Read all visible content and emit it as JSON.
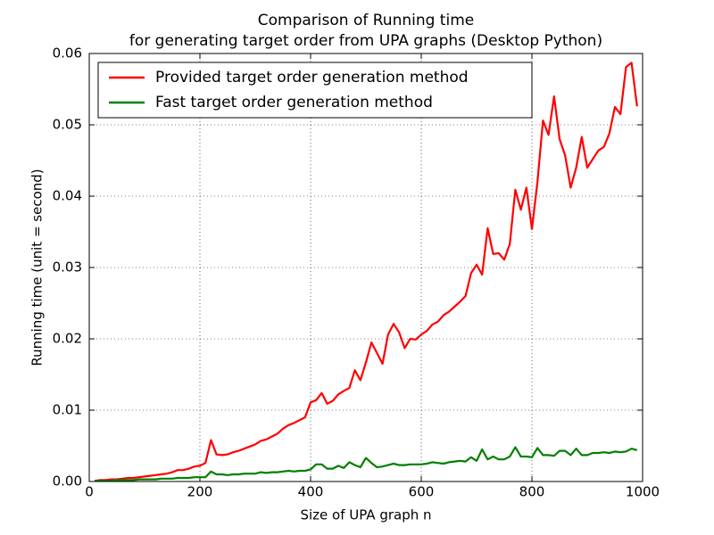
{
  "chart_data": {
    "type": "line",
    "title": [
      "Comparison of Running time",
      "for generating target order from UPA graphs  (Desktop Python)"
    ],
    "xlabel": "Size of UPA graph n",
    "ylabel": "Running time (unit = second)",
    "x": [
      10,
      20,
      30,
      40,
      50,
      60,
      70,
      80,
      90,
      100,
      110,
      120,
      130,
      140,
      150,
      160,
      170,
      180,
      190,
      200,
      210,
      220,
      230,
      240,
      250,
      260,
      270,
      280,
      290,
      300,
      310,
      320,
      330,
      340,
      350,
      360,
      370,
      380,
      390,
      400,
      410,
      420,
      430,
      440,
      450,
      460,
      470,
      480,
      490,
      500,
      510,
      520,
      530,
      540,
      550,
      560,
      570,
      580,
      590,
      600,
      610,
      620,
      630,
      640,
      650,
      660,
      670,
      680,
      690,
      700,
      710,
      720,
      730,
      740,
      750,
      760,
      770,
      780,
      790,
      800,
      810,
      820,
      830,
      840,
      850,
      860,
      870,
      880,
      890,
      900,
      910,
      920,
      930,
      940,
      950,
      960,
      970,
      980,
      990
    ],
    "series": [
      {
        "name": "Provided target order generation method",
        "color": "#ff0000",
        "values": [
          0.0001,
          0.0002,
          0.0002,
          0.0003,
          0.0003,
          0.0004,
          0.0005,
          0.0005,
          0.0006,
          0.0007,
          0.0008,
          0.0009,
          0.001,
          0.0011,
          0.0013,
          0.0016,
          0.0016,
          0.0018,
          0.0021,
          0.0022,
          0.0026,
          0.0058,
          0.0038,
          0.0037,
          0.0038,
          0.0041,
          0.0043,
          0.0046,
          0.0049,
          0.0052,
          0.0057,
          0.0059,
          0.0063,
          0.0067,
          0.0074,
          0.0079,
          0.0082,
          0.0086,
          0.009,
          0.0111,
          0.0114,
          0.0124,
          0.0109,
          0.0113,
          0.0122,
          0.0127,
          0.0131,
          0.0156,
          0.0142,
          0.0167,
          0.0195,
          0.018,
          0.0165,
          0.0206,
          0.0221,
          0.0209,
          0.0187,
          0.02,
          0.0199,
          0.0206,
          0.0211,
          0.022,
          0.0224,
          0.0233,
          0.0238,
          0.0245,
          0.0252,
          0.026,
          0.0292,
          0.0304,
          0.029,
          0.0355,
          0.0319,
          0.032,
          0.0311,
          0.0333,
          0.0409,
          0.0381,
          0.0412,
          0.0354,
          0.042,
          0.0506,
          0.0486,
          0.054,
          0.048,
          0.0457,
          0.0412,
          0.044,
          0.0483,
          0.044,
          0.0452,
          0.0464,
          0.0469,
          0.0488,
          0.0525,
          0.0515,
          0.0581,
          0.0587,
          0.0526
        ]
      },
      {
        "name": "Fast target order generation method",
        "color": "#008000",
        "values": [
          0.0001,
          0.0001,
          0.0001,
          0.0001,
          0.0002,
          0.0002,
          0.0002,
          0.0002,
          0.0003,
          0.0003,
          0.0003,
          0.0003,
          0.0004,
          0.0004,
          0.0004,
          0.0005,
          0.0005,
          0.0005,
          0.0006,
          0.0006,
          0.0006,
          0.0014,
          0.001,
          0.001,
          0.0009,
          0.001,
          0.001,
          0.0011,
          0.0011,
          0.0011,
          0.0013,
          0.0012,
          0.0013,
          0.0013,
          0.0014,
          0.0015,
          0.0014,
          0.0015,
          0.0015,
          0.0017,
          0.0024,
          0.0024,
          0.0018,
          0.0018,
          0.0022,
          0.0019,
          0.0027,
          0.0023,
          0.002,
          0.0033,
          0.0026,
          0.002,
          0.0021,
          0.0023,
          0.0025,
          0.0023,
          0.0023,
          0.0024,
          0.0024,
          0.0024,
          0.0025,
          0.0027,
          0.0026,
          0.0025,
          0.0027,
          0.0028,
          0.0029,
          0.0028,
          0.0034,
          0.0029,
          0.0045,
          0.0031,
          0.0035,
          0.0031,
          0.0031,
          0.0035,
          0.0048,
          0.0035,
          0.0035,
          0.0034,
          0.0047,
          0.0037,
          0.0037,
          0.0036,
          0.0043,
          0.0043,
          0.0037,
          0.0046,
          0.0037,
          0.0037,
          0.004,
          0.004,
          0.0041,
          0.004,
          0.0042,
          0.0041,
          0.0042,
          0.0046,
          0.0044
        ]
      }
    ],
    "xlim": [
      0,
      1000
    ],
    "xticks": [
      0,
      200,
      400,
      600,
      800,
      1000
    ],
    "ylim": [
      0,
      0.06
    ],
    "yticks": [
      {
        "value": 0,
        "label": "0.00"
      },
      {
        "value": 0.01,
        "label": "0.01"
      },
      {
        "value": 0.02,
        "label": "0.02"
      },
      {
        "value": 0.03,
        "label": "0.03"
      },
      {
        "value": 0.04,
        "label": "0.04"
      },
      {
        "value": 0.05,
        "label": "0.05"
      },
      {
        "value": 0.06,
        "label": "0.06"
      }
    ],
    "grid": true,
    "legend": "upper-left"
  }
}
